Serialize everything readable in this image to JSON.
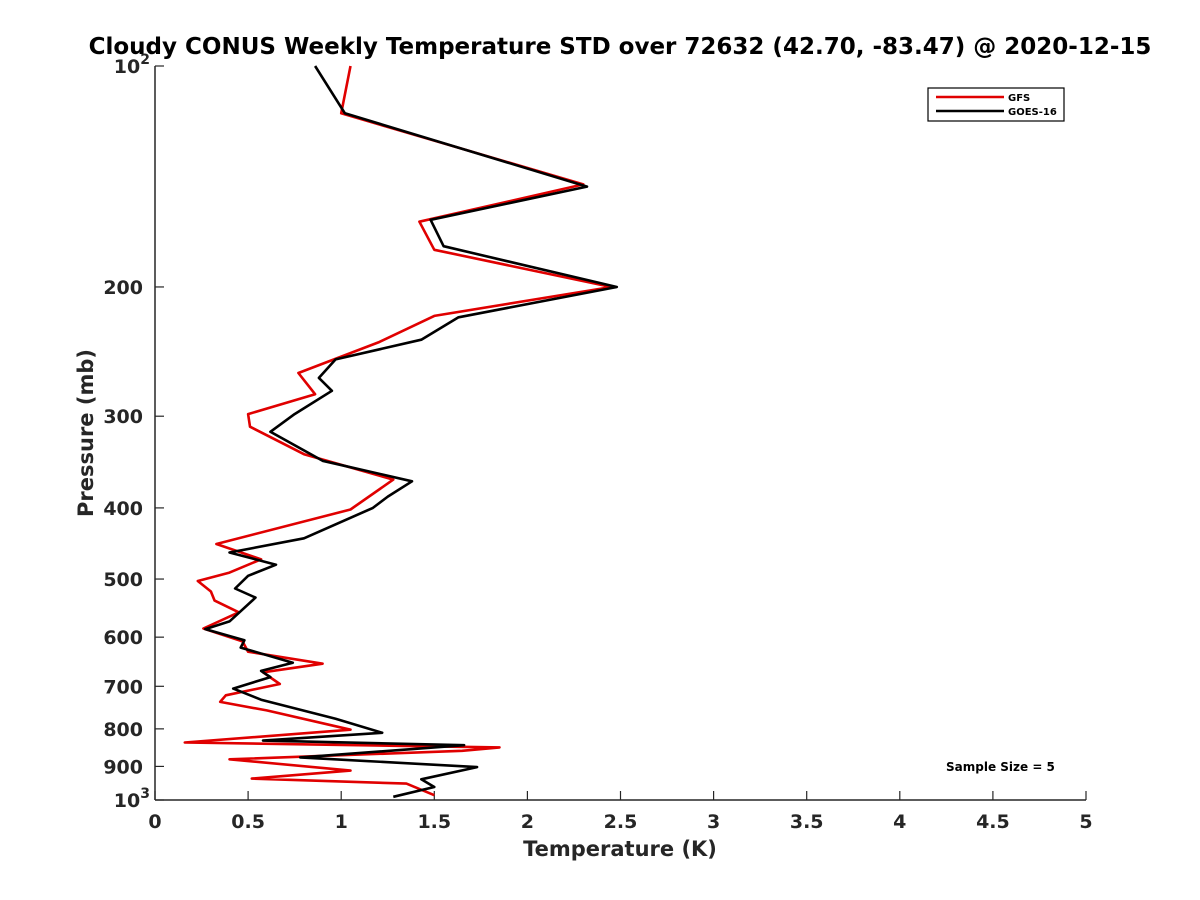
{
  "chart_data": {
    "type": "line",
    "title": "Cloudy CONUS Weekly Temperature STD over 72632 (42.70, -83.47) @ 2020-12-15",
    "xlabel": "Temperature (K)",
    "ylabel": "Pressure (mb)",
    "xlim": [
      0,
      5
    ],
    "ylim": [
      100,
      1000
    ],
    "y_scale": "log",
    "y_reversed": true,
    "x_ticks": [
      "0",
      "0.5",
      "1",
      "1.5",
      "2",
      "2.5",
      "3",
      "3.5",
      "4",
      "4.5",
      "5"
    ],
    "y_ticks": [
      {
        "value": 100,
        "label": "10",
        "sup": "2"
      },
      {
        "value": 200,
        "label": "200",
        "sup": ""
      },
      {
        "value": 300,
        "label": "300",
        "sup": ""
      },
      {
        "value": 400,
        "label": "400",
        "sup": ""
      },
      {
        "value": 500,
        "label": "500",
        "sup": ""
      },
      {
        "value": 600,
        "label": "600",
        "sup": ""
      },
      {
        "value": 700,
        "label": "700",
        "sup": ""
      },
      {
        "value": 800,
        "label": "800",
        "sup": ""
      },
      {
        "value": 900,
        "label": "900",
        "sup": ""
      },
      {
        "value": 1000,
        "label": "10",
        "sup": "3"
      }
    ],
    "grid": false,
    "legend_position": "top-right",
    "annotation": "Sample Size = 5",
    "series": [
      {
        "name": "GFS",
        "color": "#e00000",
        "points": [
          [
            1.05,
            100
          ],
          [
            1.0,
            116
          ],
          [
            2.3,
            145
          ],
          [
            1.42,
            163
          ],
          [
            1.5,
            178
          ],
          [
            2.45,
            200
          ],
          [
            1.5,
            219
          ],
          [
            1.2,
            238
          ],
          [
            0.77,
            262
          ],
          [
            0.86,
            280
          ],
          [
            0.5,
            298
          ],
          [
            0.51,
            310
          ],
          [
            0.8,
            338
          ],
          [
            1.28,
            366
          ],
          [
            1.05,
            402
          ],
          [
            0.33,
            448
          ],
          [
            0.57,
            470
          ],
          [
            0.4,
            490
          ],
          [
            0.23,
            503
          ],
          [
            0.3,
            520
          ],
          [
            0.32,
            535
          ],
          [
            0.45,
            555
          ],
          [
            0.26,
            584
          ],
          [
            0.47,
            608
          ],
          [
            0.5,
            628
          ],
          [
            0.9,
            652
          ],
          [
            0.58,
            670
          ],
          [
            0.67,
            695
          ],
          [
            0.38,
            720
          ],
          [
            0.35,
            735
          ],
          [
            0.6,
            755
          ],
          [
            1.05,
            802
          ],
          [
            0.16,
            835
          ],
          [
            1.85,
            848
          ],
          [
            1.65,
            857
          ],
          [
            0.4,
            880
          ],
          [
            1.05,
            912
          ],
          [
            0.52,
            935
          ],
          [
            1.35,
            950
          ],
          [
            1.5,
            985
          ]
        ]
      },
      {
        "name": "GOES-16",
        "color": "#000000",
        "points": [
          [
            0.86,
            100
          ],
          [
            1.02,
            116
          ],
          [
            2.32,
            146
          ],
          [
            1.48,
            162
          ],
          [
            1.55,
            176
          ],
          [
            2.48,
            200
          ],
          [
            1.63,
            220
          ],
          [
            1.43,
            236
          ],
          [
            0.97,
            251
          ],
          [
            0.88,
            266
          ],
          [
            0.95,
            277
          ],
          [
            0.75,
            298
          ],
          [
            0.62,
            315
          ],
          [
            0.9,
            345
          ],
          [
            1.38,
            368
          ],
          [
            1.25,
            386
          ],
          [
            1.17,
            400
          ],
          [
            0.8,
            440
          ],
          [
            0.4,
            460
          ],
          [
            0.65,
            478
          ],
          [
            0.5,
            495
          ],
          [
            0.43,
            515
          ],
          [
            0.54,
            530
          ],
          [
            0.46,
            553
          ],
          [
            0.4,
            571
          ],
          [
            0.27,
            585
          ],
          [
            0.48,
            606
          ],
          [
            0.46,
            620
          ],
          [
            0.74,
            650
          ],
          [
            0.57,
            667
          ],
          [
            0.62,
            680
          ],
          [
            0.42,
            705
          ],
          [
            0.57,
            730
          ],
          [
            0.97,
            775
          ],
          [
            1.22,
            810
          ],
          [
            0.58,
            830
          ],
          [
            1.66,
            842
          ],
          [
            0.78,
            875
          ],
          [
            1.73,
            902
          ],
          [
            1.43,
            937
          ],
          [
            1.5,
            960
          ],
          [
            1.28,
            990
          ]
        ]
      }
    ]
  }
}
